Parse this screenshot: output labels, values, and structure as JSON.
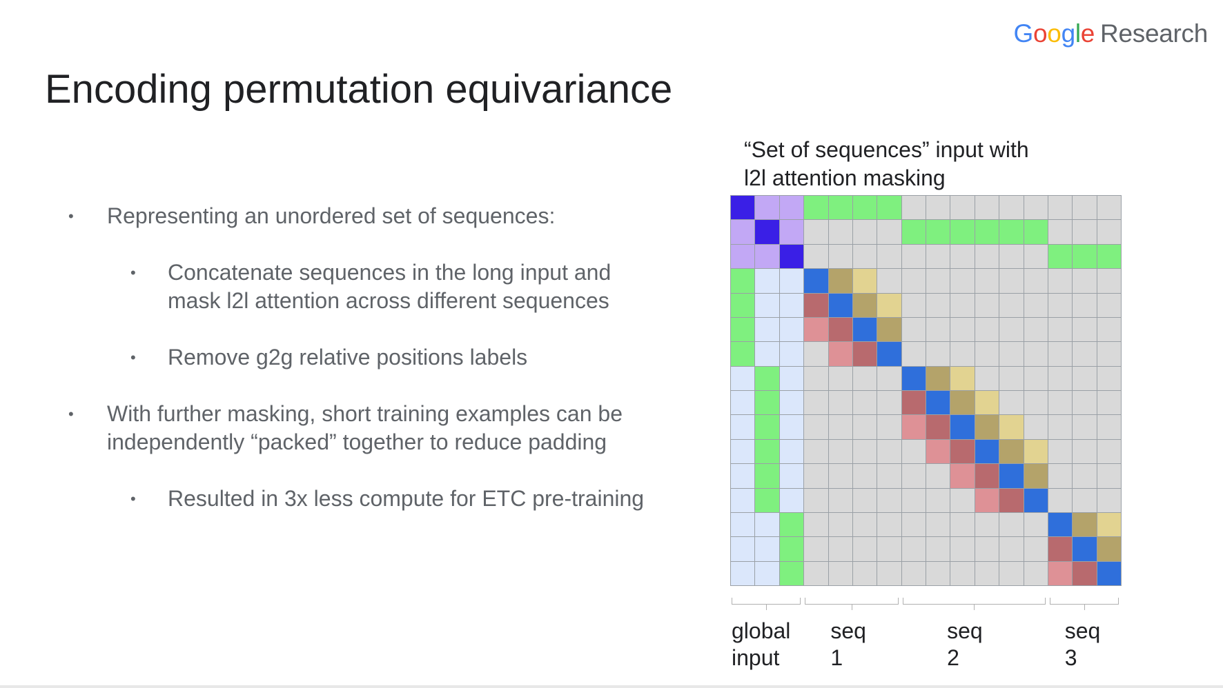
{
  "logo": {
    "google": "Google",
    "research": "Research"
  },
  "title": "Encoding permutation equivariance",
  "bullets": [
    {
      "level": 1,
      "lines": [
        "Representing an unordered set of sequences:"
      ]
    },
    {
      "level": 2,
      "lines": [
        "Concatenate sequences in the long input and",
        "mask l2l attention across different sequences"
      ]
    },
    {
      "level": 2,
      "lines": [
        "Remove g2g relative positions labels"
      ]
    },
    {
      "level": 1,
      "lines": [
        "With further masking, short training examples can be",
        "independently “packed” together to reduce padding"
      ]
    },
    {
      "level": 2,
      "lines": [
        "Resulted in 3x less compute for ETC pre-training"
      ]
    }
  ],
  "diagram": {
    "title_lines": [
      "“Set of sequences” input with",
      "l2l attention masking"
    ],
    "groups": [
      {
        "label": "global\ninput",
        "size": 3
      },
      {
        "label": "seq 1",
        "size": 4
      },
      {
        "label": "seq 2",
        "size": 6
      },
      {
        "label": "seq 3",
        "size": 3
      }
    ],
    "colors": {
      "empty": "#d9d9d9",
      "g2g_self": "#3a1fe6",
      "g2g_other": "#c2a8f5",
      "g2l": "#7ff07f",
      "l2g_member": "#7ff07f",
      "l2g_other": "#dbe7fb",
      "l2l_self": "#2f6fdb",
      "l2l_right1": "#b4a36a",
      "l2l_right2": "#e2d391",
      "l2l_left1": "#b86a6e",
      "l2l_left2": "#de9196"
    }
  }
}
